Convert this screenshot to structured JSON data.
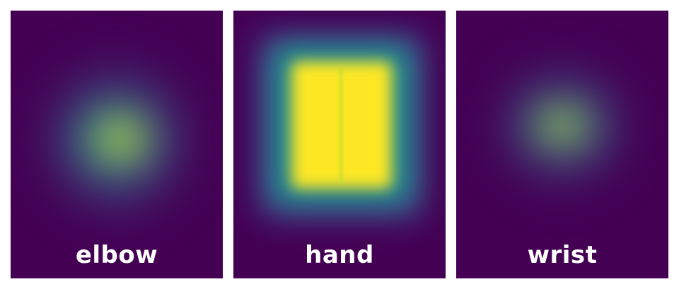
{
  "panels": [
    {
      "label": "elbow"
    },
    {
      "label": "hand"
    },
    {
      "label": "wrist"
    }
  ],
  "colormap": {
    "low": "#440154",
    "mid_low": "#3b528b",
    "mid": "#21918c",
    "mid_high": "#35b779",
    "high": "#fde725"
  }
}
